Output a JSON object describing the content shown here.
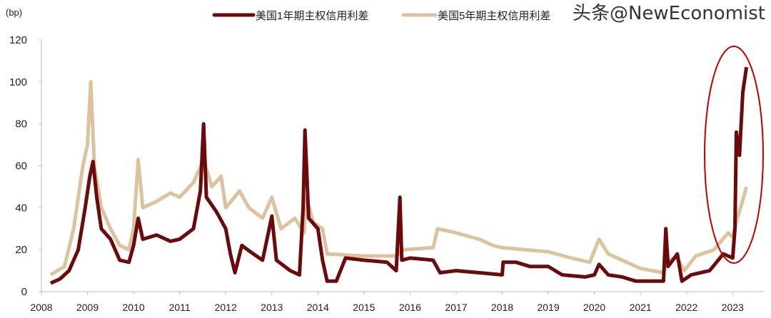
{
  "chart_data": {
    "type": "line",
    "unit_label": "(bp)",
    "ylim": [
      0,
      120
    ],
    "yticks": [
      0,
      20,
      40,
      60,
      80,
      100,
      120
    ],
    "xlim": [
      2008,
      2023.5
    ],
    "xticks": [
      "2008",
      "2009",
      "2010",
      "2011",
      "2012",
      "2013",
      "2014",
      "2015",
      "2016",
      "2017",
      "2018",
      "2019",
      "2020",
      "2021",
      "2022",
      "2023"
    ],
    "grid": false,
    "legend": "top-center",
    "series": [
      {
        "name": "美国1年期主权信用利差",
        "color": "#6b0a0a",
        "points": [
          [
            2008.2,
            4
          ],
          [
            2008.4,
            6
          ],
          [
            2008.6,
            10
          ],
          [
            2008.8,
            20
          ],
          [
            2008.95,
            40
          ],
          [
            2009.05,
            55
          ],
          [
            2009.12,
            62
          ],
          [
            2009.2,
            45
          ],
          [
            2009.3,
            30
          ],
          [
            2009.5,
            25
          ],
          [
            2009.7,
            15
          ],
          [
            2009.9,
            14
          ],
          [
            2010.0,
            22
          ],
          [
            2010.1,
            35
          ],
          [
            2010.2,
            25
          ],
          [
            2010.5,
            27
          ],
          [
            2010.8,
            24
          ],
          [
            2011.0,
            25
          ],
          [
            2011.3,
            30
          ],
          [
            2011.45,
            48
          ],
          [
            2011.52,
            80
          ],
          [
            2011.58,
            45
          ],
          [
            2011.8,
            38
          ],
          [
            2012.0,
            30
          ],
          [
            2012.1,
            18
          ],
          [
            2012.2,
            9
          ],
          [
            2012.35,
            22
          ],
          [
            2012.6,
            18
          ],
          [
            2012.8,
            15
          ],
          [
            2013.0,
            36
          ],
          [
            2013.1,
            15
          ],
          [
            2013.4,
            10
          ],
          [
            2013.6,
            8
          ],
          [
            2013.68,
            40
          ],
          [
            2013.72,
            77
          ],
          [
            2013.8,
            35
          ],
          [
            2014.0,
            30
          ],
          [
            2014.1,
            15
          ],
          [
            2014.2,
            5
          ],
          [
            2014.4,
            5
          ],
          [
            2014.6,
            16
          ],
          [
            2015.0,
            15
          ],
          [
            2015.5,
            14
          ],
          [
            2015.7,
            10
          ],
          [
            2015.78,
            45
          ],
          [
            2015.82,
            15
          ],
          [
            2016.0,
            16
          ],
          [
            2016.5,
            15
          ],
          [
            2016.65,
            9
          ],
          [
            2017.0,
            10
          ],
          [
            2017.5,
            9
          ],
          [
            2018.0,
            8
          ],
          [
            2018.02,
            14
          ],
          [
            2018.3,
            14
          ],
          [
            2018.6,
            12
          ],
          [
            2019.0,
            12
          ],
          [
            2019.3,
            8
          ],
          [
            2019.8,
            7
          ],
          [
            2020.0,
            8
          ],
          [
            2020.1,
            13
          ],
          [
            2020.3,
            8
          ],
          [
            2020.6,
            7
          ],
          [
            2020.9,
            5
          ],
          [
            2021.5,
            5
          ],
          [
            2021.55,
            30
          ],
          [
            2021.6,
            12
          ],
          [
            2021.8,
            18
          ],
          [
            2021.9,
            5
          ],
          [
            2022.1,
            8
          ],
          [
            2022.5,
            10
          ],
          [
            2022.8,
            18
          ],
          [
            2023.0,
            16
          ],
          [
            2023.05,
            30
          ],
          [
            2023.08,
            76
          ],
          [
            2023.15,
            65
          ],
          [
            2023.22,
            95
          ],
          [
            2023.3,
            107
          ]
        ]
      },
      {
        "name": "美国5年期主权信用利差",
        "color": "#dcc3a0",
        "points": [
          [
            2008.2,
            8
          ],
          [
            2008.5,
            12
          ],
          [
            2008.7,
            30
          ],
          [
            2008.9,
            60
          ],
          [
            2009.0,
            70
          ],
          [
            2009.07,
            100
          ],
          [
            2009.15,
            60
          ],
          [
            2009.3,
            40
          ],
          [
            2009.5,
            30
          ],
          [
            2009.7,
            22
          ],
          [
            2009.9,
            20
          ],
          [
            2010.0,
            30
          ],
          [
            2010.1,
            63
          ],
          [
            2010.2,
            40
          ],
          [
            2010.5,
            43
          ],
          [
            2010.8,
            47
          ],
          [
            2011.0,
            45
          ],
          [
            2011.3,
            52
          ],
          [
            2011.52,
            63
          ],
          [
            2011.7,
            50
          ],
          [
            2011.9,
            55
          ],
          [
            2012.0,
            40
          ],
          [
            2012.3,
            48
          ],
          [
            2012.5,
            40
          ],
          [
            2012.8,
            35
          ],
          [
            2013.0,
            45
          ],
          [
            2013.2,
            30
          ],
          [
            2013.5,
            35
          ],
          [
            2013.7,
            28
          ],
          [
            2013.75,
            45
          ],
          [
            2013.9,
            33
          ],
          [
            2014.1,
            30
          ],
          [
            2014.2,
            18
          ],
          [
            2015.0,
            17
          ],
          [
            2015.7,
            17
          ],
          [
            2015.85,
            20
          ],
          [
            2016.5,
            21
          ],
          [
            2016.6,
            30
          ],
          [
            2017.0,
            28
          ],
          [
            2017.5,
            25
          ],
          [
            2017.8,
            22
          ],
          [
            2018.0,
            21
          ],
          [
            2018.5,
            20
          ],
          [
            2019.0,
            19
          ],
          [
            2019.5,
            16
          ],
          [
            2019.9,
            14
          ],
          [
            2020.1,
            25
          ],
          [
            2020.3,
            18
          ],
          [
            2020.7,
            14
          ],
          [
            2021.0,
            11
          ],
          [
            2021.5,
            9
          ],
          [
            2021.6,
            15
          ],
          [
            2021.8,
            16
          ],
          [
            2021.95,
            10
          ],
          [
            2022.2,
            17
          ],
          [
            2022.6,
            20
          ],
          [
            2022.9,
            28
          ],
          [
            2023.0,
            26
          ],
          [
            2023.1,
            35
          ],
          [
            2023.2,
            42
          ],
          [
            2023.3,
            50
          ]
        ]
      }
    ],
    "annotation": {
      "type": "ellipse",
      "color": "#c00000",
      "target": "2023"
    }
  },
  "watermark": "头条@NewEconomist"
}
